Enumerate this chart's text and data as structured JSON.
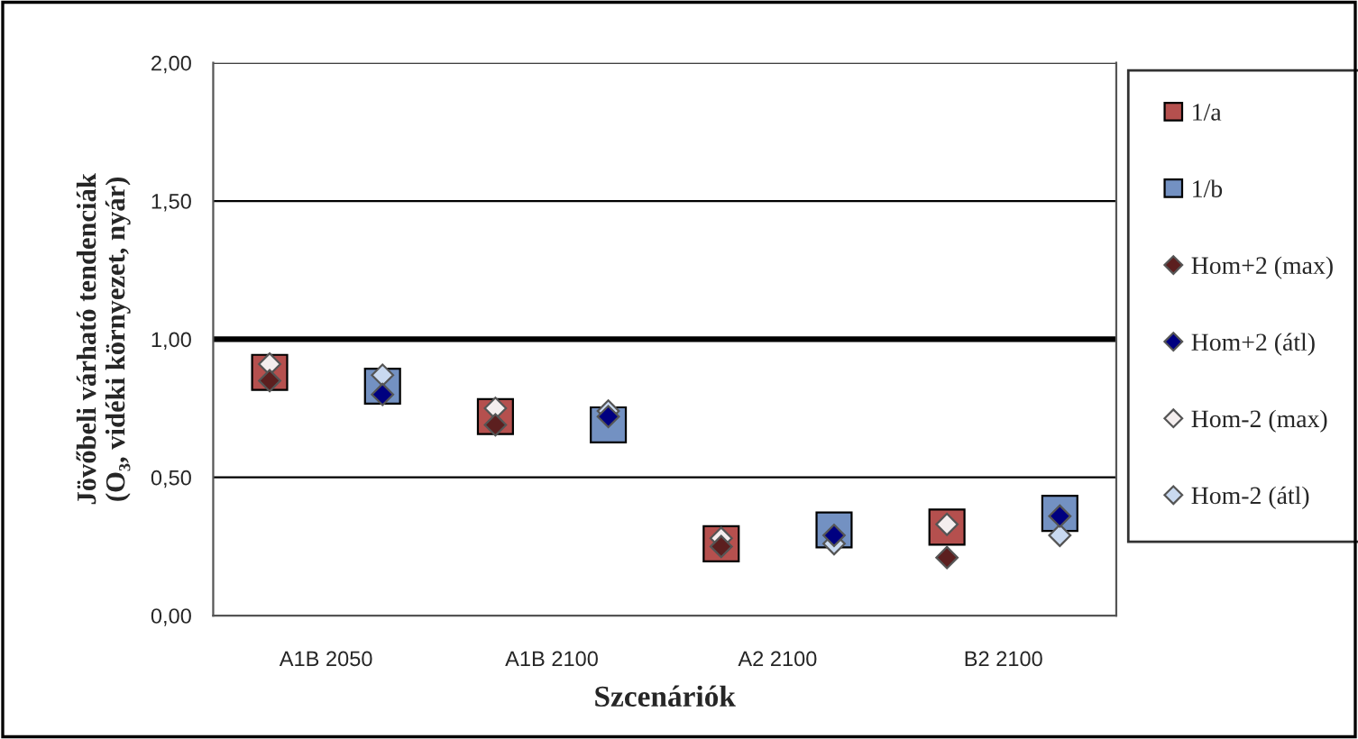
{
  "chart_data": {
    "type": "scatter",
    "xlabel": "Szcenáriók",
    "ylabel": "Jövőbeli várható tendenciák\n(O₃, vidéki környezet, nyár)",
    "categories": [
      "A1B 2050",
      "A1B 2100",
      "A2 2100",
      "B2 2100"
    ],
    "series": [
      {
        "name": "1/a",
        "color": "#b5504e",
        "marker": "square",
        "values": [
          0.88,
          0.72,
          0.26,
          0.32
        ]
      },
      {
        "name": "1/b",
        "color": "#7391c2",
        "marker": "square",
        "values": [
          0.83,
          0.69,
          0.31,
          0.37
        ]
      },
      {
        "name": "Hom+2 (max)",
        "color": "#5c1f1f",
        "marker": "diamond",
        "values": [
          0.85,
          0.69,
          0.25,
          0.21
        ]
      },
      {
        "name": "Hom+2 (átl)",
        "color": "#000080",
        "marker": "diamond",
        "values": [
          0.8,
          0.72,
          0.29,
          0.36
        ]
      },
      {
        "name": "Hom-2 (max)",
        "color": "#f4eeee",
        "marker": "diamond",
        "values": [
          0.91,
          0.75,
          0.28,
          0.33
        ]
      },
      {
        "name": "Hom-2 (átl)",
        "color": "#c9d9f0",
        "marker": "diamond",
        "values": [
          0.87,
          0.74,
          0.26,
          0.29
        ]
      }
    ],
    "ylim": [
      0,
      2
    ],
    "yticks": [
      {
        "value": 0,
        "label": "0,00"
      },
      {
        "value": 0.5,
        "label": "0,50"
      },
      {
        "value": 1,
        "label": "1,00"
      },
      {
        "value": 1.5,
        "label": "1,50"
      },
      {
        "value": 2,
        "label": "2,00"
      }
    ],
    "ref_lines": [
      {
        "axis": "y",
        "value": 1,
        "color": "#000000"
      }
    ],
    "grid": "y",
    "legend": "right"
  }
}
